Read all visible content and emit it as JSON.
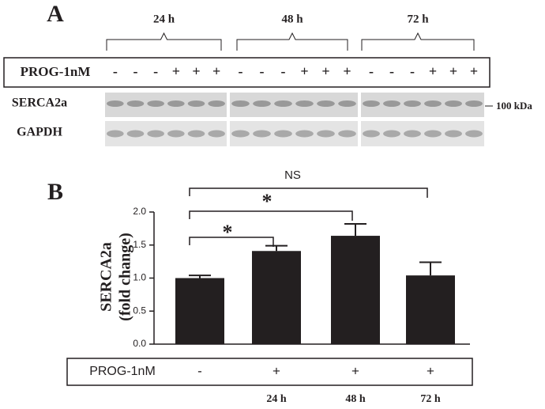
{
  "panel_a": {
    "label": "A",
    "treatment_label": "PROG-1nM",
    "groups": [
      {
        "label": "24 h",
        "treatment": [
          "-",
          "-",
          "-",
          "+",
          "+",
          "+"
        ]
      },
      {
        "label": "48 h",
        "treatment": [
          "-",
          "-",
          "-",
          "+",
          "+",
          "+"
        ]
      },
      {
        "label": "72 h",
        "treatment": [
          "-",
          "-",
          "-",
          "+",
          "+",
          "+"
        ]
      }
    ],
    "rows": [
      "SERCA2a",
      "GAPDH"
    ],
    "marker": "100 kDa"
  },
  "chart_data": {
    "type": "bar",
    "panel_label": "B",
    "ylabel": [
      "SERCA2a",
      "(fold change)"
    ],
    "categories": [
      null,
      "24 h",
      "48 h",
      "72 h"
    ],
    "treatment_label": "PROG-1nM",
    "treatment": [
      "-",
      "+",
      "+",
      "+"
    ],
    "values": [
      1.0,
      1.41,
      1.64,
      1.04
    ],
    "errors": [
      0.04,
      0.08,
      0.18,
      0.2
    ],
    "color": "#231f20",
    "ylim": [
      0,
      2
    ],
    "yticks": [
      {
        "value": 0,
        "label": "0.0"
      },
      {
        "value": 0.5,
        "label": "0.5"
      },
      {
        "value": 1,
        "label": "1.0"
      },
      {
        "value": 1.5,
        "label": "1.5"
      },
      {
        "value": 2,
        "label": "2.0"
      }
    ],
    "annotations": [
      "*",
      "*",
      "NS"
    ]
  }
}
